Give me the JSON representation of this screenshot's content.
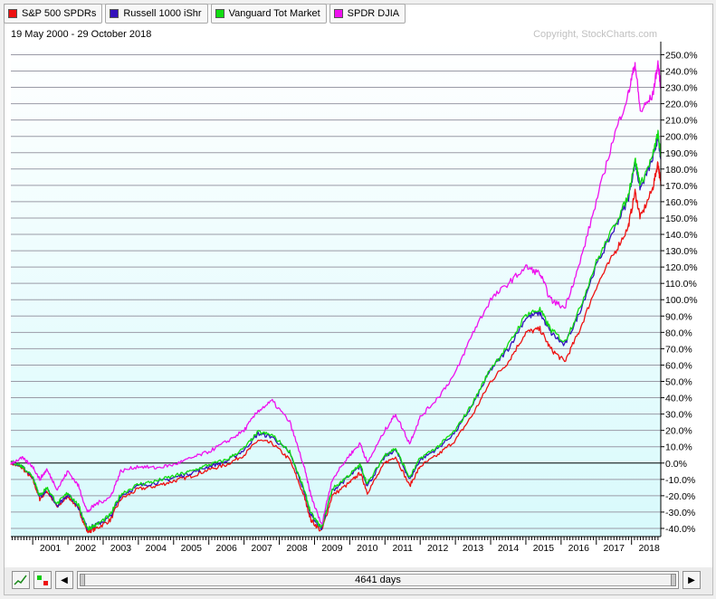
{
  "legend": [
    {
      "label": "S&P 500 SPDRs",
      "color": "#ee1111"
    },
    {
      "label": "Russell 1000 iShr",
      "color": "#3311bb"
    },
    {
      "label": "Vanguard Tot Market",
      "color": "#11dd11"
    },
    {
      "label": "SPDR DJIA",
      "color": "#ee11ee"
    }
  ],
  "date_range": "19 May 2000 - 29 October 2018",
  "copyright": "Copyright, StockCharts.com",
  "scroll_label": "4641 days",
  "chart_data": {
    "type": "line",
    "ylim": [
      -45,
      258
    ],
    "x_tick_labels": [
      "2001",
      "2002",
      "2003",
      "2004",
      "2005",
      "2006",
      "2007",
      "2008",
      "2009",
      "2010",
      "2011",
      "2012",
      "2013",
      "2014",
      "2015",
      "2016",
      "2017",
      "2018"
    ],
    "y_tick_labels": [
      "250.0%",
      "240.0%",
      "230.0%",
      "220.0%",
      "210.0%",
      "200.0%",
      "190.0%",
      "180.0%",
      "170.0%",
      "160.0%",
      "150.0%",
      "140.0%",
      "130.0%",
      "120.0%",
      "110.0%",
      "100.0%",
      "90.0%",
      "80.0%",
      "70.0%",
      "60.0%",
      "50.0%",
      "40.0%",
      "30.0%",
      "20.0%",
      "10.0%",
      "0.0%",
      "-10.0%",
      "-20.0%",
      "-30.0%",
      "-40.0%"
    ],
    "x": [
      2000.38,
      2000.7,
      2001.0,
      2001.2,
      2001.4,
      2001.7,
      2002.0,
      2002.3,
      2002.55,
      2002.8,
      2003.2,
      2003.5,
      2004.0,
      2004.5,
      2005.0,
      2005.5,
      2006.0,
      2006.5,
      2007.0,
      2007.4,
      2007.8,
      2008.3,
      2008.7,
      2008.9,
      2009.2,
      2009.5,
      2010.0,
      2010.3,
      2010.5,
      2011.0,
      2011.3,
      2011.7,
      2012.0,
      2012.5,
      2013.0,
      2013.5,
      2014.0,
      2014.5,
      2015.0,
      2015.4,
      2015.7,
      2016.1,
      2016.5,
      2017.0,
      2017.5,
      2017.9,
      2018.1,
      2018.25,
      2018.6,
      2018.75,
      2018.83
    ],
    "series": [
      {
        "name": "S&P 500 SPDRs",
        "color": "#ee1111",
        "values": [
          0,
          -3,
          -10,
          -22,
          -17,
          -27,
          -20,
          -28,
          -42,
          -40,
          -35,
          -22,
          -16,
          -14,
          -11,
          -8,
          -4,
          -1,
          5,
          14,
          12,
          2,
          -20,
          -35,
          -42,
          -20,
          -12,
          -6,
          -18,
          0,
          4,
          -14,
          -2,
          5,
          14,
          30,
          50,
          62,
          80,
          82,
          70,
          62,
          80,
          108,
          128,
          144,
          166,
          150,
          168,
          184,
          170
        ]
      },
      {
        "name": "Russell 1000 iShr",
        "color": "#3311bb",
        "values": [
          1,
          -2,
          -9,
          -21,
          -16,
          -26,
          -19,
          -27,
          -40,
          -38,
          -33,
          -20,
          -14,
          -12,
          -9,
          -6,
          -2,
          1,
          8,
          18,
          16,
          6,
          -17,
          -32,
          -40,
          -17,
          -8,
          -2,
          -14,
          4,
          8,
          -10,
          2,
          9,
          19,
          36,
          57,
          70,
          89,
          92,
          80,
          72,
          91,
          121,
          143,
          161,
          184,
          168,
          186,
          200,
          186
        ]
      },
      {
        "name": "Vanguard Tot Market",
        "color": "#11dd11",
        "values": [
          1,
          -2,
          -8,
          -20,
          -15,
          -25,
          -18,
          -26,
          -40,
          -38,
          -32,
          -19,
          -13,
          -11,
          -8,
          -5,
          -1,
          2,
          9,
          19,
          17,
          7,
          -16,
          -31,
          -40,
          -16,
          -7,
          -1,
          -13,
          5,
          9,
          -9,
          3,
          10,
          20,
          37,
          58,
          72,
          91,
          94,
          82,
          74,
          93,
          123,
          145,
          163,
          186,
          170,
          188,
          202,
          188
        ]
      },
      {
        "name": "SPDR DJIA",
        "color": "#ee11ee",
        "values": [
          0,
          3,
          -2,
          -10,
          -4,
          -16,
          -5,
          -14,
          -30,
          -25,
          -21,
          -5,
          -2,
          -3,
          -1,
          3,
          7,
          13,
          20,
          32,
          38,
          25,
          -2,
          -20,
          -38,
          -10,
          5,
          12,
          0,
          20,
          30,
          12,
          28,
          40,
          55,
          80,
          100,
          110,
          120,
          116,
          100,
          95,
          120,
          160,
          200,
          225,
          245,
          215,
          225,
          245,
          230
        ]
      }
    ]
  }
}
